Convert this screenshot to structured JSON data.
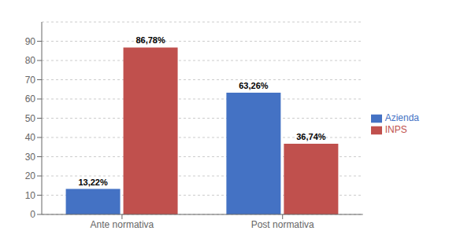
{
  "chart_data": {
    "type": "bar",
    "categories": [
      "Ante normativa",
      "Post normativa"
    ],
    "series": [
      {
        "name": "Azienda",
        "color": "#4472C4",
        "values": [
          13.22,
          63.26
        ],
        "value_labels": [
          "13,22%",
          "63,26%"
        ]
      },
      {
        "name": "INPS",
        "color": "#C0504D",
        "values": [
          86.78,
          36.74
        ],
        "value_labels": [
          "86,78%",
          "36,74%"
        ]
      }
    ],
    "ylim": [
      0,
      100
    ],
    "yticks": [
      0,
      10,
      20,
      30,
      40,
      50,
      60,
      70,
      80,
      90
    ],
    "grid": true,
    "legend": "right",
    "data_labels": true
  }
}
